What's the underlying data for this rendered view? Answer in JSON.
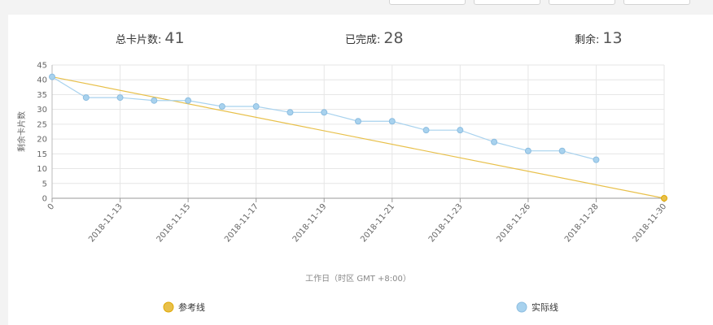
{
  "toolbar": {
    "buttons": [
      "",
      "",
      "",
      ""
    ]
  },
  "stats": {
    "total_label": "总卡片数:",
    "total_value": "41",
    "done_label": "已完成:",
    "done_value": "28",
    "remain_label": "剩余:",
    "remain_value": "13"
  },
  "colors": {
    "reference": "#e8c04a",
    "actual": "#a8d2ee",
    "reference_marker_border": "#e0a800",
    "actual_marker_border": "#8cbde0"
  },
  "chart_data": {
    "type": "line",
    "ylabel": "剩余卡片数",
    "xlabel": "工作日（时区 GMT +8:00）",
    "ylim": [
      0,
      45
    ],
    "yticks": [
      0,
      5,
      10,
      15,
      20,
      25,
      30,
      35,
      40,
      45
    ],
    "xticks": [
      "0",
      "2018-11-13",
      "2018-11-15",
      "2018-11-17",
      "2018-11-19",
      "2018-11-21",
      "2018-11-23",
      "2018-11-26",
      "2018-11-28",
      "2018-11-30"
    ],
    "series": [
      {
        "name": "参考线",
        "x": [
          0,
          18
        ],
        "values": [
          41,
          0
        ]
      },
      {
        "name": "实际线",
        "x": [
          0,
          1,
          2,
          3,
          4,
          5,
          6,
          7,
          8,
          9,
          10,
          11,
          12,
          13,
          14,
          15,
          16
        ],
        "values": [
          41,
          34,
          34,
          33,
          33,
          31,
          31,
          29,
          29,
          26,
          26,
          23,
          23,
          19,
          16,
          16,
          13
        ]
      }
    ],
    "legend": [
      "参考线",
      "实际线"
    ],
    "legend_position": "bottom",
    "grid": true
  }
}
